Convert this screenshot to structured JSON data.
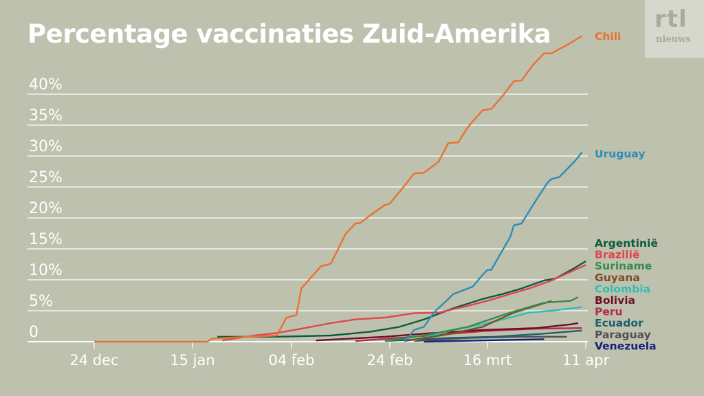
{
  "header": {
    "title": "Percentage vaccinaties Zuid-Amerika"
  },
  "logo": {
    "line1": "rtl",
    "line2": "nieuws"
  },
  "chart_data": {
    "type": "line",
    "title": "Percentage vaccinaties Zuid-Amerika",
    "xlabel": "",
    "ylabel": "",
    "x_unit": "days since 24 dec",
    "ylim": [
      0,
      50
    ],
    "y_ticks": [
      {
        "v": 0,
        "label": "0"
      },
      {
        "v": 5,
        "label": "5%"
      },
      {
        "v": 10,
        "label": "10%"
      },
      {
        "v": 15,
        "label": "15%"
      },
      {
        "v": 20,
        "label": "20%"
      },
      {
        "v": 25,
        "label": "25%"
      },
      {
        "v": 30,
        "label": "30%"
      },
      {
        "v": 35,
        "label": "35%"
      },
      {
        "v": 40,
        "label": "40%"
      }
    ],
    "x_ticks": [
      {
        "d": 0,
        "label": "24 dec"
      },
      {
        "d": 22,
        "label": "15 jan"
      },
      {
        "d": 42,
        "label": "04 feb"
      },
      {
        "d": 62,
        "label": "24 feb"
      },
      {
        "d": 82,
        "label": "16 mrt"
      },
      {
        "d": 108,
        "label": "11 apr"
      }
    ],
    "grid": true,
    "series": [
      {
        "name": "Chili",
        "color": "#e8722f",
        "points": [
          [
            0,
            0
          ],
          [
            25,
            0
          ],
          [
            26,
            0.5
          ],
          [
            39,
            1
          ],
          [
            41,
            3.9
          ],
          [
            43,
            4.3
          ],
          [
            44,
            8.6
          ],
          [
            48,
            12.2
          ],
          [
            50,
            12.6
          ],
          [
            53,
            17.4
          ],
          [
            55,
            19.1
          ],
          [
            56,
            19.2
          ],
          [
            59,
            21
          ],
          [
            61,
            22.1
          ],
          [
            62,
            22.3
          ],
          [
            65,
            25.2
          ],
          [
            67,
            27.2
          ],
          [
            69,
            27.3
          ],
          [
            72,
            29.1
          ],
          [
            74,
            32.1
          ],
          [
            76,
            32.2
          ],
          [
            78,
            34.7
          ],
          [
            81,
            37.4
          ],
          [
            83,
            37.6
          ],
          [
            86,
            39.7
          ],
          [
            89,
            42.1
          ],
          [
            91,
            42.2
          ],
          [
            94,
            44.7
          ],
          [
            97,
            46.6
          ],
          [
            99,
            46.6
          ],
          [
            104,
            48.3
          ],
          [
            107,
            49.4
          ]
        ]
      },
      {
        "name": "Uruguay",
        "color": "#2d8db5",
        "points": [
          [
            65,
            0
          ],
          [
            67,
            1.9
          ],
          [
            69,
            2.4
          ],
          [
            71,
            4.7
          ],
          [
            74,
            6.9
          ],
          [
            75,
            7.7
          ],
          [
            78,
            8.6
          ],
          [
            79,
            8.9
          ],
          [
            81,
            10.8
          ],
          [
            82,
            11.6
          ],
          [
            83,
            11.6
          ],
          [
            88,
            16.9
          ],
          [
            89,
            18.8
          ],
          [
            91,
            19.1
          ],
          [
            95,
            23
          ],
          [
            98,
            25.8
          ],
          [
            99,
            26.3
          ],
          [
            101,
            26.6
          ],
          [
            105,
            29.1
          ],
          [
            107,
            30.6
          ]
        ]
      },
      {
        "name": "Brazilië",
        "color": "#e0454f",
        "points": [
          [
            28,
            0.2
          ],
          [
            34.5,
            1
          ],
          [
            39,
            1.4
          ],
          [
            44,
            2.1
          ],
          [
            50,
            3
          ],
          [
            55,
            3.6
          ],
          [
            61,
            3.9
          ],
          [
            67,
            4.6
          ],
          [
            72,
            4.7
          ],
          [
            78,
            5.8
          ],
          [
            82,
            6.6
          ],
          [
            88,
            7.7
          ],
          [
            93,
            8.6
          ],
          [
            99,
            9.9
          ],
          [
            104,
            11.3
          ],
          [
            108,
            12.4
          ]
        ]
      },
      {
        "name": "Argentinië",
        "color": "#0f5a3c",
        "points": [
          [
            27,
            0.8
          ],
          [
            39,
            0.8
          ],
          [
            50,
            1
          ],
          [
            58,
            1.6
          ],
          [
            64,
            2.4
          ],
          [
            69,
            3.6
          ],
          [
            75,
            5.4
          ],
          [
            81,
            6.9
          ],
          [
            86,
            7.7
          ],
          [
            91,
            8.6
          ],
          [
            97,
            9.9
          ],
          [
            100,
            10.2
          ],
          [
            105,
            11.9
          ],
          [
            108,
            13
          ]
        ]
      },
      {
        "name": "Suriname",
        "color": "#3a8a4e",
        "points": [
          [
            61,
            0.1
          ],
          [
            69,
            1
          ],
          [
            78,
            2.4
          ],
          [
            88,
            4.7
          ],
          [
            97,
            6.3
          ],
          [
            104,
            6.6
          ],
          [
            106,
            7.2
          ]
        ]
      },
      {
        "name": "Guyana",
        "color": "#7a4e25",
        "points": [
          [
            65,
            0.1
          ],
          [
            74,
            1.2
          ],
          [
            81,
            2.4
          ],
          [
            89,
            4.7
          ],
          [
            99,
            6.6
          ]
        ]
      },
      {
        "name": "Colombia",
        "color": "#2dbfb5",
        "points": [
          [
            67,
            0.2
          ],
          [
            75,
            1.9
          ],
          [
            81,
            2.8
          ],
          [
            88,
            3.9
          ],
          [
            93,
            4.7
          ],
          [
            99,
            5
          ],
          [
            107,
            5.6
          ]
        ]
      },
      {
        "name": "Bolivia",
        "color": "#6b0f25",
        "points": [
          [
            47,
            0.2
          ],
          [
            61,
            0.8
          ],
          [
            69,
            1.3
          ],
          [
            81,
            1.9
          ],
          [
            95,
            2.2
          ],
          [
            104,
            2.8
          ],
          [
            106,
            3
          ]
        ]
      },
      {
        "name": "Peru",
        "color": "#b52a4a",
        "points": [
          [
            55,
            0.1
          ],
          [
            67,
            0.8
          ],
          [
            81,
            1.7
          ],
          [
            95,
            2.1
          ],
          [
            107,
            2.2
          ]
        ]
      },
      {
        "name": "Ecuador",
        "color": "#1f5f6e",
        "points": [
          [
            61,
            0.1
          ],
          [
            74,
            0.6
          ],
          [
            84,
            0.8
          ],
          [
            97,
            1.3
          ],
          [
            107,
            1.8
          ]
        ]
      },
      {
        "name": "Paraguay",
        "color": "#505050",
        "points": [
          [
            67,
            0.1
          ],
          [
            78,
            0.6
          ],
          [
            91,
            0.8
          ],
          [
            103,
            0.8
          ]
        ]
      },
      {
        "name": "Venezuela",
        "color": "#14207a",
        "points": [
          [
            69,
            0
          ],
          [
            81,
            0.2
          ],
          [
            97,
            0.4
          ]
        ]
      }
    ],
    "legend_order": [
      "Argentinië",
      "Brazilië",
      "Suriname",
      "Guyana",
      "Colombia",
      "Bolivia",
      "Peru",
      "Ecuador",
      "Paraguay",
      "Venezuela"
    ]
  }
}
